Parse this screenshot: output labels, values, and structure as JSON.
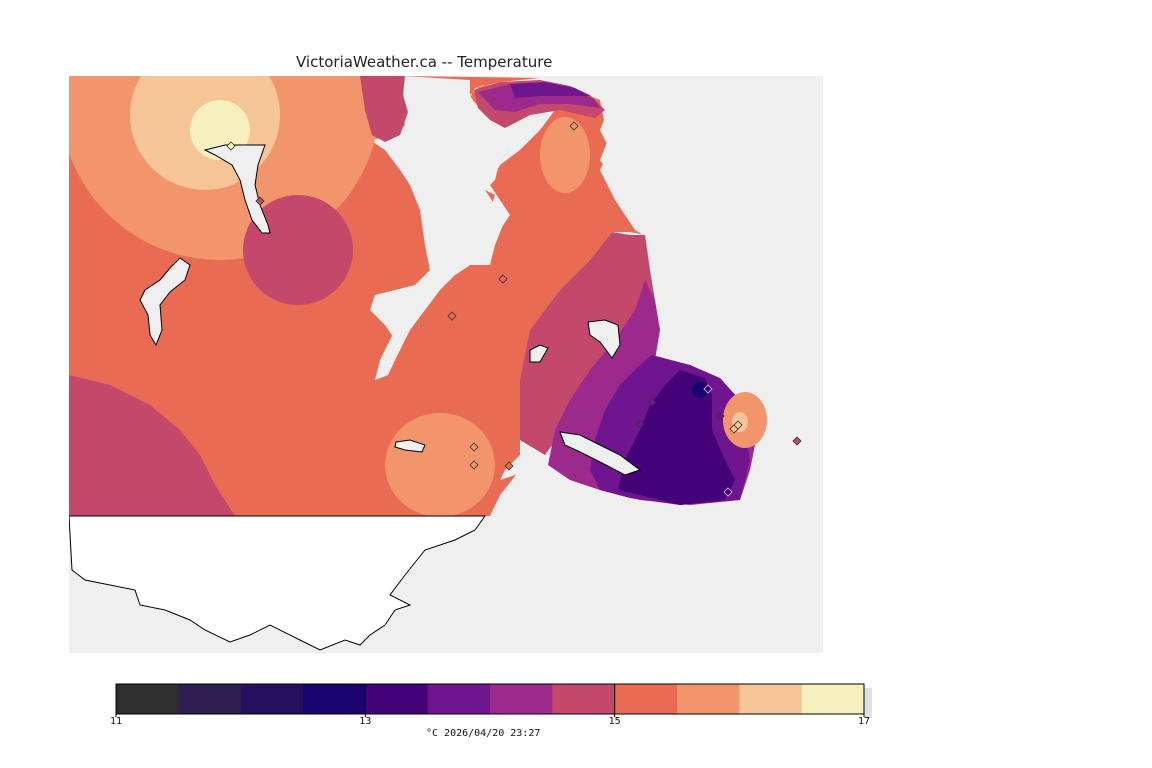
{
  "title": "VictoriaWeather.ca -- Temperature",
  "footer": "°C 2026/04/20 23:27",
  "legend": {
    "ticks": [
      "11",
      "13",
      "15",
      "17"
    ],
    "colors": [
      "#2f2f2f",
      "#2e1f52",
      "#261060",
      "#1a0470",
      "#440378",
      "#6f158f",
      "#9b2a8c",
      "#c3486b",
      "#e96b53",
      "#f3956c",
      "#f5c597",
      "#f5f0bd"
    ]
  },
  "map": {
    "land_color": "#e96b53",
    "outside_color": "#efefef",
    "island_color": "#ffffff",
    "region_colors": {
      "warm_peak": "#f5f0bd",
      "warm_ring": "#f5c597",
      "warm": "#f3956c",
      "base": "#e96b53",
      "mild": "#c3486b",
      "cool": "#9b2a8c",
      "cooler": "#6f158f",
      "coolest": "#440378",
      "darkest": "#1a0470"
    },
    "station_icon": "diamond-marker-icon"
  }
}
